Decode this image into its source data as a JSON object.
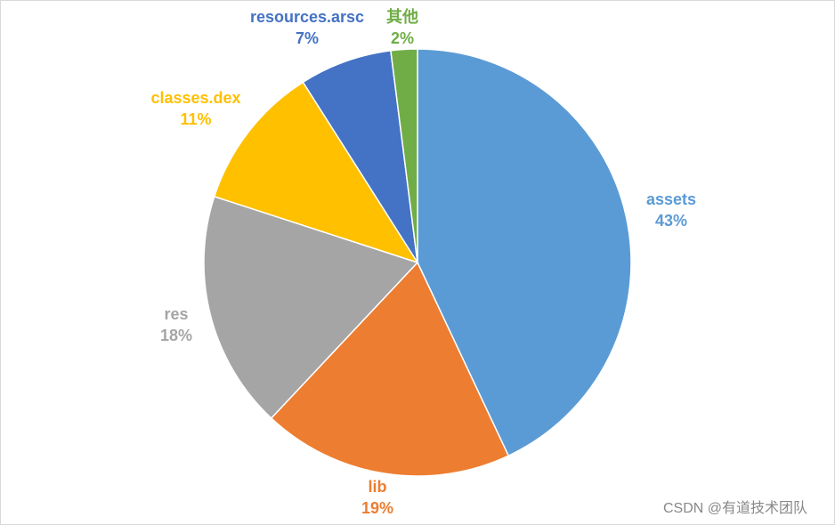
{
  "chart_data": {
    "type": "pie",
    "categories": [
      "assets",
      "lib",
      "res",
      "classes.dex",
      "resources.arsc",
      "其他"
    ],
    "values": [
      43,
      19,
      18,
      11,
      7,
      2
    ],
    "value_labels": [
      "43%",
      "19%",
      "18%",
      "11%",
      "7%",
      "2%"
    ],
    "colors": [
      "#5b9bd5",
      "#ed7d31",
      "#a5a5a5",
      "#ffc000",
      "#4472c4",
      "#70ad47"
    ]
  },
  "watermark": "CSDN @有道技术团队"
}
